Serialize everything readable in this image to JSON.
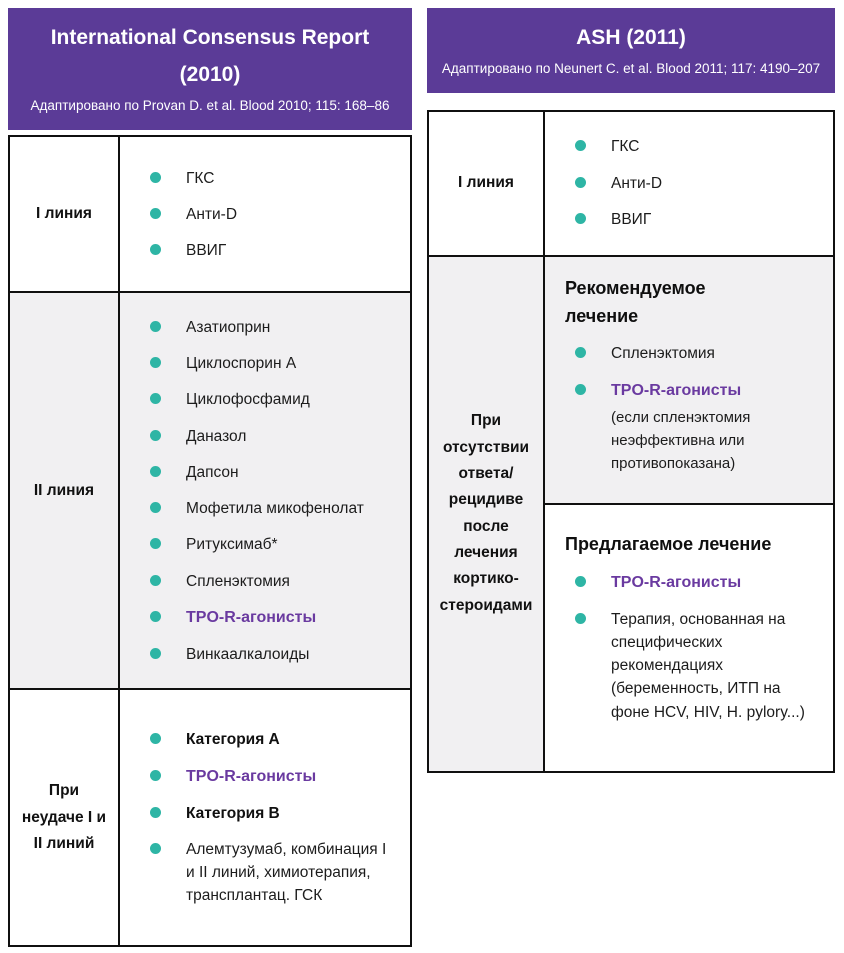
{
  "colors": {
    "header_bg": "#5b3b97",
    "bullet_teal": "#2eb5a5",
    "accent_purple": "#6a3aa0",
    "row_alt_bg": "#f1f0f2",
    "table_border": "#101010"
  },
  "left_panel": {
    "title_line1": "International Consensus Report",
    "title_line2": "(2010)",
    "subtitle": "Адаптировано по Provan D. et al. Blood 2010; 115: 168–86",
    "row1": {
      "label": "I линия",
      "items": [
        "ГКС",
        "Анти-D",
        "ВВИГ"
      ]
    },
    "row2": {
      "label": "II линия",
      "items": [
        "Азатиоприн",
        "Циклоспорин А",
        "Циклофосфамид",
        "Даназол",
        "Дапсон",
        "Мофетила микофенолат",
        "Ритуксимаб*",
        "Спленэктомия",
        "TPO-R-агонисты",
        "Винкаалкалоиды"
      ]
    },
    "row3": {
      "label": "При неудаче I и II линий",
      "items": [
        "Категория А",
        "TPO-R-агонисты",
        "Категория В",
        "Алемтузумаб, комбинация I и II линий, химиотерапия, трансплантац. ГСК"
      ]
    }
  },
  "right_panel": {
    "title": "ASH (2011)",
    "subtitle": "Адаптировано по Neunert C. et al. Blood 2011; 117: 4190–207",
    "row1": {
      "label": "I линия",
      "items": [
        "ГКС",
        "Анти-D",
        "ВВИГ"
      ]
    },
    "row2": {
      "label": "При отсутствии ответа/ рецидиве после лечения кортико-стероидами",
      "recommended": {
        "heading": "Рекомендуемое лечение",
        "item1": "Спленэктомия",
        "item2": "TPO-R-агонисты",
        "item2_note": "(если спленэктомия неэффективна или противопоказана)"
      },
      "suggested": {
        "heading": "Предлагаемое лечение",
        "item1": "TPO-R-агонисты",
        "item2": "Терапия, основанная на специфических рекомендациях (беременность, ИТП на фоне HCV, HIV, H. pylory...)"
      }
    }
  }
}
